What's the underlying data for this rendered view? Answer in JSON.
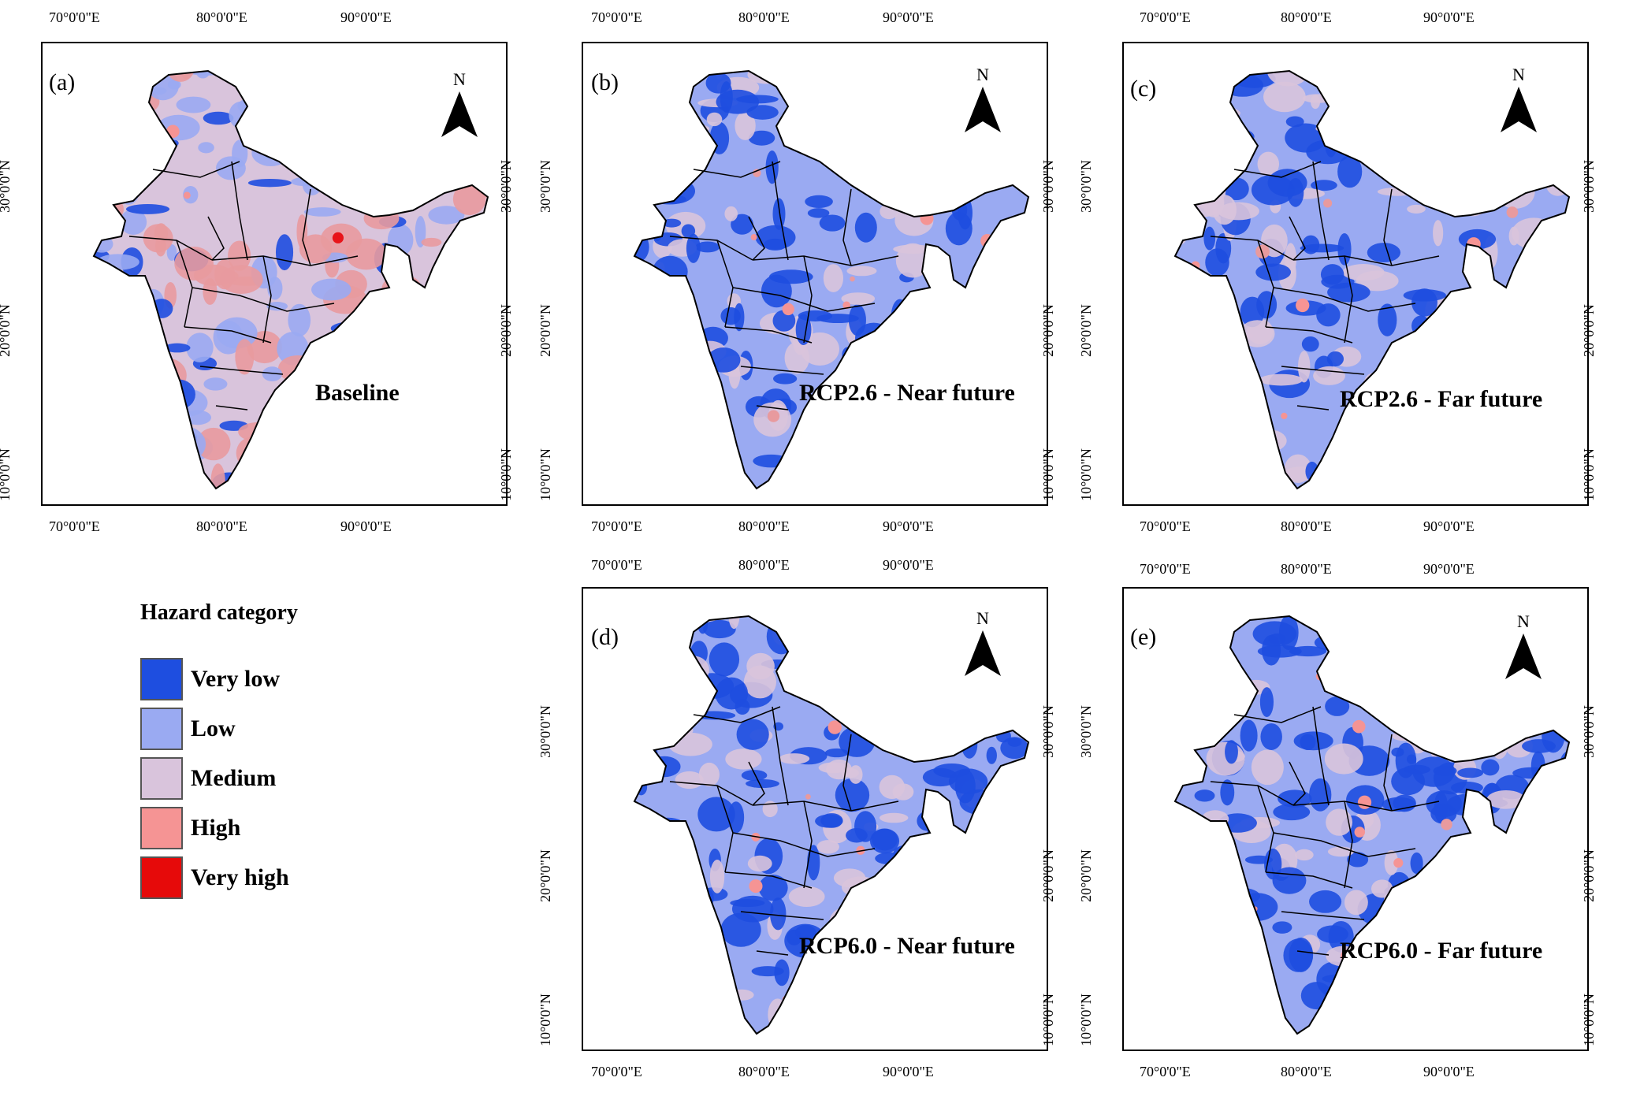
{
  "figure": {
    "panels": [
      {
        "id": "a",
        "label": "(a)",
        "scenario": "Baseline",
        "base": "#d9c4dc",
        "blob1": "#9aaaf2",
        "blob2": "#e89a9e",
        "blob3": "#e8141a",
        "blob4": "#1e4ee0",
        "north_letter": "N",
        "lon_ticks": [
          "70°0'0\"E",
          "80°0'0\"E",
          "90°0'0\"E"
        ],
        "lat_ticks": [
          "30°0'0\"N",
          "20°0'0\"N",
          "10°0'0\"N"
        ]
      },
      {
        "id": "b",
        "label": "(b)",
        "scenario": "RCP2.6 - Near future",
        "base": "#9aaaf2",
        "blob1": "#1e4ee0",
        "blob2": "#d9c4dc",
        "blob3": "#e89a9e",
        "blob4": "#1e4ee0",
        "north_letter": "N",
        "lon_ticks": [
          "70°0'0\"E",
          "80°0'0\"E",
          "90°0'0\"E"
        ],
        "lat_ticks": [
          "30°0'0\"N",
          "20°0'0\"N",
          "10°0'0\"N"
        ]
      },
      {
        "id": "c",
        "label": "(c)",
        "scenario": "RCP2.6 - Far future",
        "base": "#9aaaf2",
        "blob1": "#1e4ee0",
        "blob2": "#d9c4dc",
        "blob3": "#e89a9e",
        "blob4": "#d9c4dc",
        "north_letter": "N",
        "lon_ticks": [
          "70°0'0\"E",
          "80°0'0\"E",
          "90°0'0\"E"
        ],
        "lat_ticks": [
          "30°0'0\"N",
          "20°0'0\"N",
          "10°0'0\"N"
        ]
      },
      {
        "id": "d",
        "label": "(d)",
        "scenario": "RCP6.0 - Near future",
        "base": "#9aaaf2",
        "blob1": "#1e4ee0",
        "blob2": "#d9c4dc",
        "blob3": "#e89a9e",
        "blob4": "#1e4ee0",
        "north_letter": "N",
        "lon_ticks": [
          "70°0'0\"E",
          "80°0'0\"E",
          "90°0'0\"E"
        ],
        "lat_ticks": [
          "30°0'0\"N",
          "20°0'0\"N",
          "10°0'0\"N"
        ]
      },
      {
        "id": "e",
        "label": "(e)",
        "scenario": "RCP6.0 - Far future",
        "base": "#9aaaf2",
        "blob1": "#1e4ee0",
        "blob2": "#d9c4dc",
        "blob3": "#e89a9e",
        "blob4": "#1e4ee0",
        "north_letter": "N",
        "lon_ticks": [
          "70°0'0\"E",
          "80°0'0\"E",
          "90°0'0\"E"
        ],
        "lat_ticks": [
          "30°0'0\"N",
          "20°0'0\"N",
          "10°0'0\"N"
        ]
      }
    ]
  },
  "legend": {
    "title": "Hazard category",
    "items": [
      {
        "label": "Very low",
        "color": "#1e4ee0"
      },
      {
        "label": "Low",
        "color": "#9aaaf2"
      },
      {
        "label": "Medium",
        "color": "#d9c4dc"
      },
      {
        "label": "High",
        "color": "#f59494"
      },
      {
        "label": "Very high",
        "color": "#e60a0a"
      }
    ]
  }
}
